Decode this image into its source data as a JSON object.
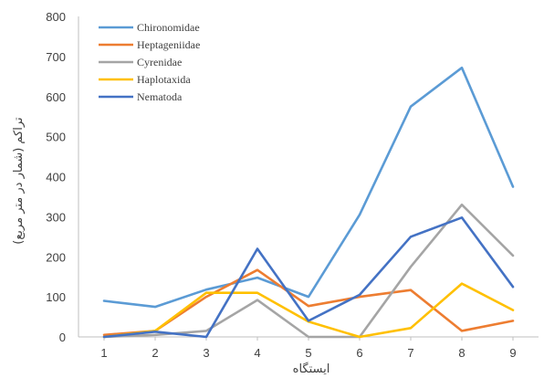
{
  "chart_data": {
    "type": "line",
    "title": "",
    "xlabel": "ایستگاه",
    "ylabel": "تراکم (شمار در متر مربع)",
    "x": [
      1,
      2,
      3,
      4,
      5,
      6,
      7,
      8,
      9
    ],
    "ylim": [
      0,
      800
    ],
    "yticks": [
      0,
      100,
      200,
      300,
      400,
      500,
      600,
      700,
      800
    ],
    "grid": false,
    "legend_position": "top-left",
    "series": [
      {
        "name": "Chironomidae",
        "color": "#5B9BD5",
        "values": [
          90,
          75,
          118,
          148,
          100,
          305,
          575,
          672,
          375
        ]
      },
      {
        "name": "Heptageniidae",
        "color": "#ED7D31",
        "values": [
          5,
          15,
          100,
          167,
          77,
          100,
          117,
          15,
          40
        ]
      },
      {
        "name": "Cyrenidae",
        "color": "#A5A5A5",
        "values": [
          0,
          5,
          15,
          92,
          0,
          0,
          175,
          330,
          203
        ]
      },
      {
        "name": "Haplotaxida",
        "color": "#FFC000",
        "values": [
          0,
          15,
          110,
          110,
          38,
          0,
          22,
          133,
          67
        ]
      },
      {
        "name": "Nematoda",
        "color": "#4472C4",
        "values": [
          0,
          13,
          0,
          220,
          40,
          105,
          250,
          298,
          125
        ]
      }
    ]
  }
}
